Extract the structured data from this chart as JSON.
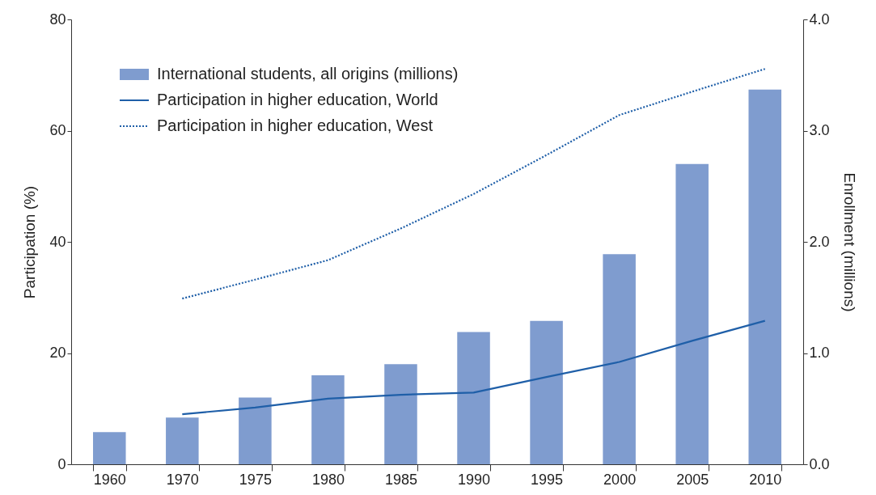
{
  "chart_data": {
    "type": "bar",
    "categories": [
      "1960",
      "1970",
      "1975",
      "1980",
      "1985",
      "1990",
      "1995",
      "2000",
      "2005",
      "2010"
    ],
    "ylabel": "Participation (%)",
    "y2label": "Enrollment (millions)",
    "ylim": [
      0,
      80
    ],
    "yticks": [
      0,
      20,
      40,
      60,
      80
    ],
    "y2lim": [
      0,
      4
    ],
    "y2ticks": [
      {
        "value": 0,
        "label": "0.0"
      },
      {
        "value": 1,
        "label": "1.0"
      },
      {
        "value": 2,
        "label": "2.0"
      },
      {
        "value": 3,
        "label": "3.0"
      },
      {
        "value": 4,
        "label": "4.0"
      }
    ],
    "grid": false,
    "legend": "top left",
    "series": [
      {
        "name": "International students, all origins (millions)",
        "axis": "y2",
        "color": "#7f9ccf",
        "values": [
          0.29,
          0.42,
          0.6,
          0.8,
          0.9,
          1.19,
          1.29,
          1.89,
          2.7,
          3.37
        ]
      },
      {
        "name": "Participation in higher education, World",
        "type": "line",
        "axis": "y",
        "line_style": "solid",
        "color": "#1f5fa8",
        "values": [
          null,
          9.0,
          10.2,
          11.8,
          12.5,
          12.9,
          15.7,
          18.4,
          22.2,
          25.8
        ]
      },
      {
        "name": "Participation in higher education, West",
        "type": "line",
        "axis": "y",
        "line_style": "dotted",
        "color": "#1f5fa8",
        "values": [
          null,
          29.8,
          33.2,
          36.7,
          42.4,
          48.6,
          55.6,
          62.8,
          67.0,
          71.1
        ]
      }
    ]
  }
}
